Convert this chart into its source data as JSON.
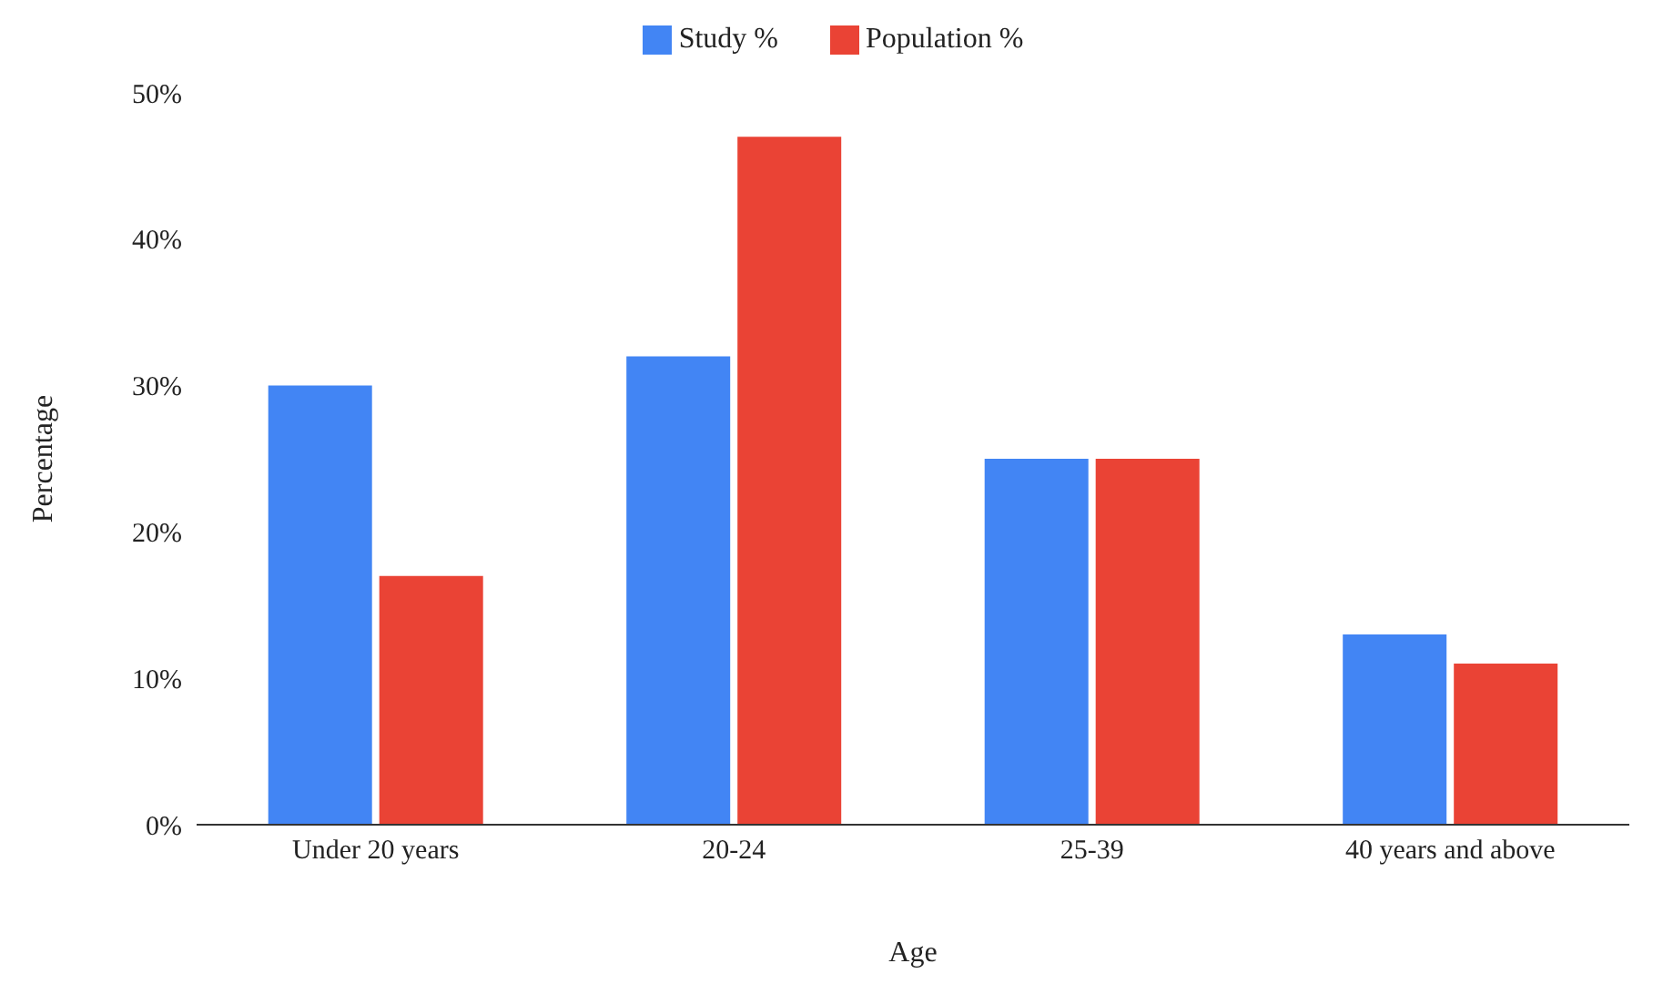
{
  "chart_data": {
    "type": "bar",
    "xlabel": "Age",
    "ylabel": "Percentage",
    "categories": [
      "Under 20 years",
      "20-24",
      "25-39",
      "40 years and above"
    ],
    "series": [
      {
        "name": "Study %",
        "color": "#4285f4",
        "values": [
          30,
          32,
          25,
          13
        ]
      },
      {
        "name": "Population %",
        "color": "#ea4335",
        "values": [
          17,
          47,
          25,
          11
        ]
      }
    ],
    "ylim": [
      0,
      50
    ],
    "yticks": [
      {
        "value": 0,
        "label": "0%"
      },
      {
        "value": 10,
        "label": "10%"
      },
      {
        "value": 20,
        "label": "20%"
      },
      {
        "value": 30,
        "label": "30%"
      },
      {
        "value": 40,
        "label": "40%"
      },
      {
        "value": 50,
        "label": "50%"
      }
    ],
    "grid": false,
    "legend": "top"
  }
}
